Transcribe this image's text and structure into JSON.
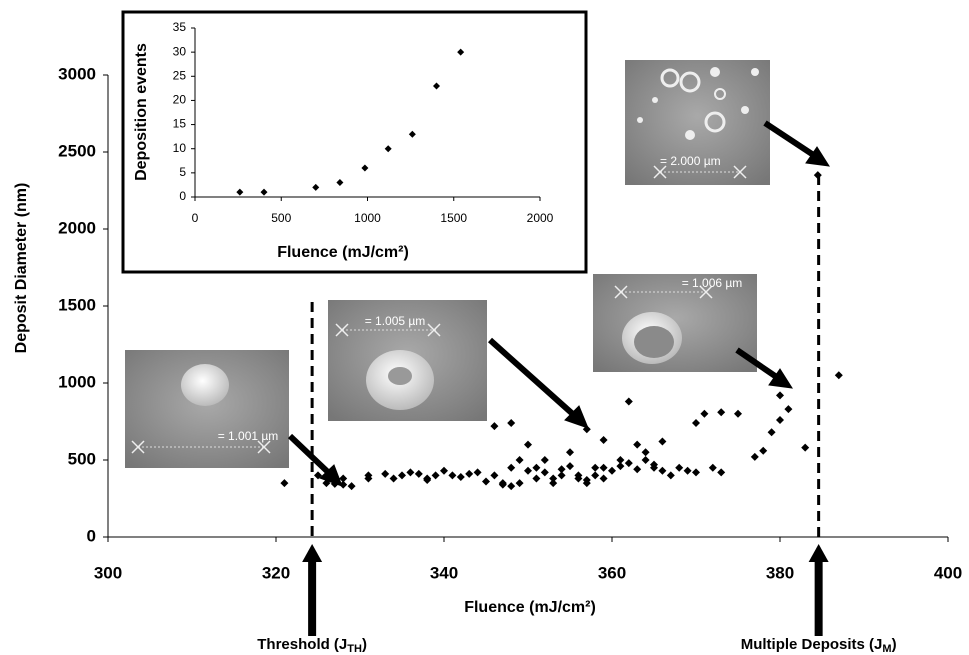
{
  "chart_data": [
    {
      "type": "scatter",
      "x_label": "Fluence (mJ/cm²)",
      "y_label": "Deposit Diameter (nm)",
      "xlim": [
        300,
        400
      ],
      "xticks": [
        300,
        320,
        340,
        360,
        380,
        400
      ],
      "ylim": [
        0,
        3500
      ],
      "yticks": [
        0,
        500,
        1000,
        1500,
        2000,
        2500,
        3000
      ],
      "color": "#000000",
      "x": [
        321,
        325,
        326,
        327,
        328,
        329,
        328,
        331,
        333,
        334,
        335,
        336,
        337,
        338,
        338,
        339,
        340,
        341,
        342,
        343,
        344,
        345,
        346,
        346,
        347,
        347,
        348,
        348,
        349,
        349,
        350,
        350,
        351,
        351,
        352,
        352,
        353,
        353,
        354,
        354,
        355,
        355,
        356,
        356,
        357,
        357,
        358,
        358,
        359,
        359,
        360,
        361,
        361,
        362,
        362,
        363,
        363,
        364,
        364,
        365,
        365,
        366,
        366,
        367,
        368,
        369,
        370,
        370,
        371,
        372,
        373,
        373,
        375,
        377,
        378,
        379,
        380,
        380,
        381,
        383,
        387,
        348,
        331,
        357,
        359,
        384.5
      ],
      "values": [
        350,
        400,
        350,
        345,
        340,
        330,
        380,
        400,
        410,
        380,
        400,
        420,
        410,
        380,
        370,
        400,
        430,
        400,
        390,
        410,
        420,
        360,
        400,
        720,
        350,
        340,
        330,
        450,
        350,
        500,
        430,
        600,
        380,
        450,
        420,
        500,
        380,
        350,
        440,
        400,
        460,
        550,
        380,
        400,
        350,
        700,
        450,
        400,
        380,
        630,
        430,
        460,
        500,
        480,
        880,
        440,
        600,
        500,
        550,
        470,
        450,
        430,
        620,
        400,
        450,
        430,
        420,
        740,
        800,
        450,
        810,
        420,
        800,
        520,
        560,
        680,
        760,
        920,
        830,
        580,
        1050,
        740,
        380,
        370,
        450,
        2350
      ],
      "markers": [
        {
          "x": 324.3,
          "text": "Threshold (J",
          "sub": "TH",
          "tail": ")"
        },
        {
          "x": 384.6,
          "text": "Multiple Deposits (J",
          "sub": "M",
          "tail": ")"
        }
      ],
      "images": [
        {
          "scale_label": "= 1.001 µm"
        },
        {
          "scale_label": "= 1.005 µm"
        },
        {
          "scale_label": "= 1.006 µm"
        },
        {
          "scale_label": "= 2.000 µm"
        }
      ]
    },
    {
      "type": "scatter",
      "x_label": "Fluence (mJ/cm²)",
      "y_label": "Deposition events",
      "xlim": [
        0,
        2000
      ],
      "xticks": [
        0,
        500,
        1000,
        1500,
        2000
      ],
      "ylim": [
        0,
        35
      ],
      "yticks": [
        0,
        5,
        10,
        15,
        20,
        25,
        30,
        35
      ],
      "color": "#000000",
      "x": [
        260,
        400,
        700,
        840,
        985,
        1120,
        1260,
        1400,
        1540
      ],
      "values": [
        1,
        1,
        2,
        3,
        6,
        10,
        13,
        23,
        30
      ]
    }
  ]
}
